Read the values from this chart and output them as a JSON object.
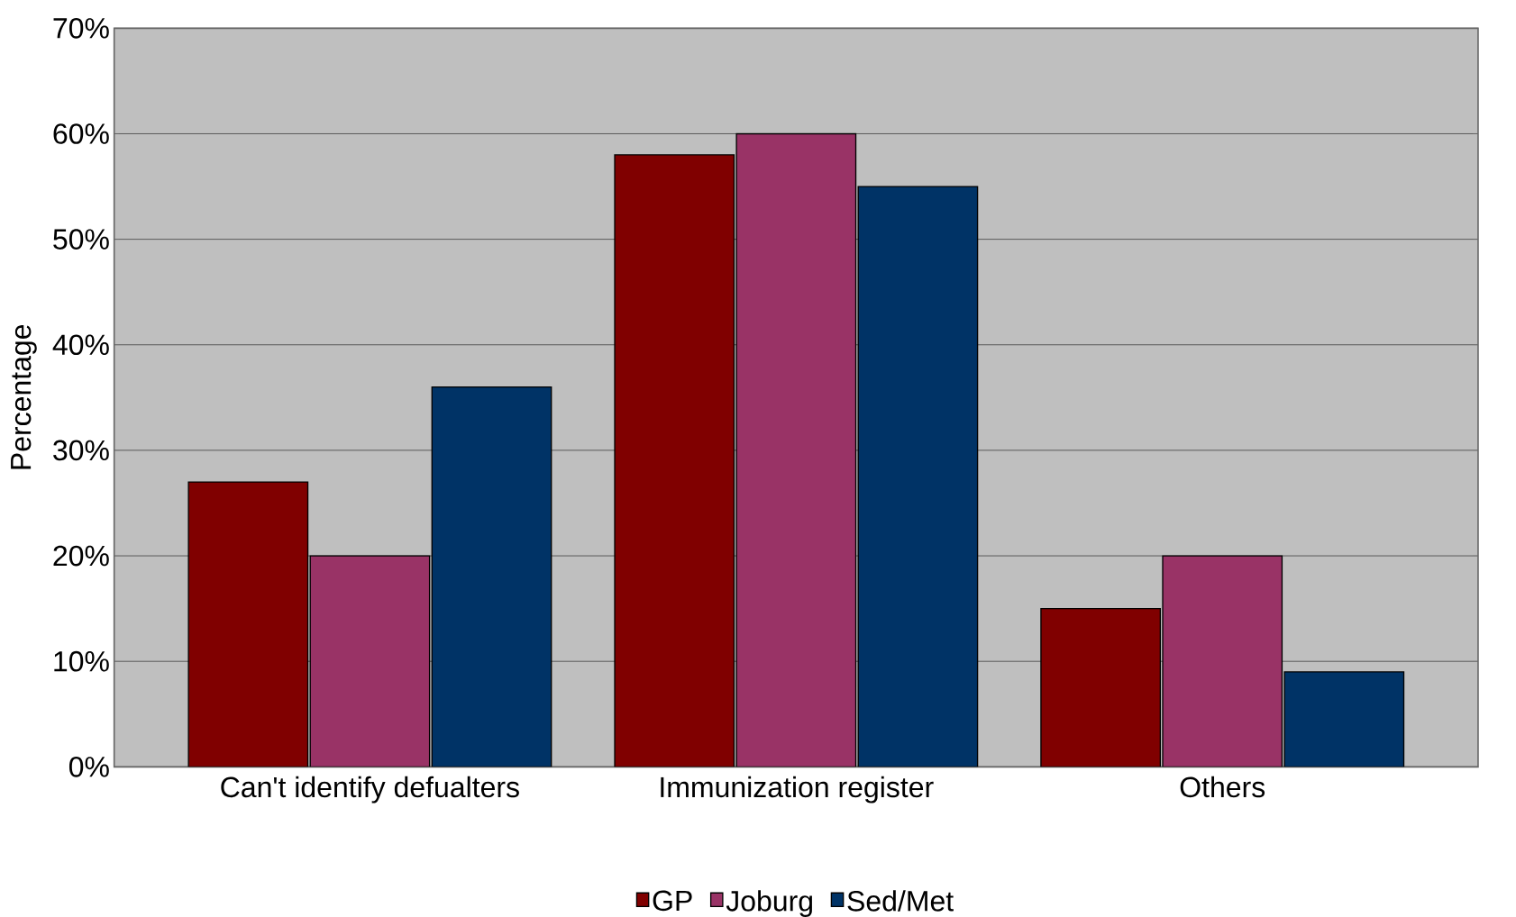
{
  "chart_data": {
    "type": "bar",
    "ylabel": "Percentage",
    "categories": [
      "Can't identify defualters",
      "Immunization register",
      "Others"
    ],
    "series": [
      {
        "name": "GP",
        "color": "#800000",
        "values": [
          27,
          58,
          15
        ]
      },
      {
        "name": "Joburg",
        "color": "#993366",
        "values": [
          20,
          60,
          20
        ]
      },
      {
        "name": "Sed/Met",
        "color": "#003366",
        "values": [
          36,
          55,
          9
        ]
      }
    ],
    "ylim": [
      0,
      70
    ],
    "yticks": [
      {
        "value": 0,
        "label": "0%"
      },
      {
        "value": 10,
        "label": "10%"
      },
      {
        "value": 20,
        "label": "20%"
      },
      {
        "value": 30,
        "label": "30%"
      },
      {
        "value": 40,
        "label": "40%"
      },
      {
        "value": 50,
        "label": "50%"
      },
      {
        "value": 60,
        "label": "60%"
      },
      {
        "value": 70,
        "label": "70%"
      }
    ],
    "grid": "y",
    "legend": "bottom"
  }
}
